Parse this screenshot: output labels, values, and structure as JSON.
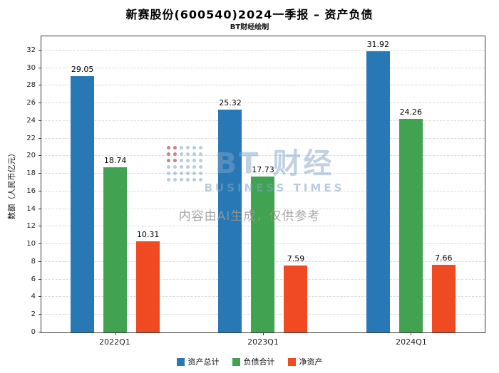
{
  "title": "新赛股份(600540)2024一季报 – 资产负债",
  "subtitle": "BT财经绘制",
  "watermark": {
    "brand_main": "BT 财经",
    "brand_sub": "BUSINESS TIMES",
    "disclaimer": "内容由AI生成，仅供参考"
  },
  "chart_data": {
    "type": "bar",
    "title": "新赛股份(600540)2024一季报 – 资产负债",
    "subtitle": "BT财经绘制",
    "xlabel": "",
    "ylabel": "数额（人民币亿元）",
    "categories": [
      "2022Q1",
      "2023Q1",
      "2024Q1"
    ],
    "series": [
      {
        "name": "资产总计",
        "color": "#2778b5",
        "values": [
          29.05,
          25.32,
          31.92
        ]
      },
      {
        "name": "负债合计",
        "color": "#41a352",
        "values": [
          18.74,
          17.73,
          24.26
        ]
      },
      {
        "name": "净资产",
        "color": "#f04a23",
        "values": [
          10.31,
          7.59,
          7.66
        ]
      }
    ],
    "ylim": [
      0,
      33.6
    ],
    "yticks": [
      0,
      2,
      4,
      6,
      8,
      10,
      12,
      14,
      16,
      18,
      20,
      22,
      24,
      26,
      28,
      30,
      32
    ],
    "grid": "horizontal-dashed",
    "legend_position": "bottom"
  }
}
